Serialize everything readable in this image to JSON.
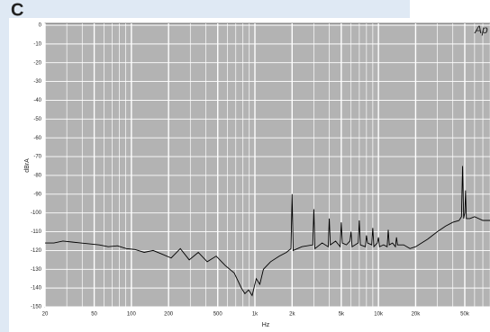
{
  "chart_data": {
    "type": "line",
    "title": "C",
    "annotation": "Ap",
    "y_label": "dBrA",
    "x_label": "Hz",
    "log_x": true,
    "grid": true,
    "color": "#000000",
    "xlim": [
      20,
      80000
    ],
    "ylim": [
      -150,
      0
    ],
    "xticks": [
      20,
      50,
      100,
      200,
      500,
      {
        "value": 1000,
        "label": "1k"
      },
      {
        "value": 2000,
        "label": "2k"
      },
      {
        "value": 5000,
        "label": "5k"
      },
      {
        "value": 10000,
        "label": "10k"
      },
      {
        "value": 20000,
        "label": "20k"
      },
      {
        "value": 50000,
        "label": "50k"
      }
    ],
    "yticks": [
      0,
      -10,
      -20,
      -30,
      -40,
      -50,
      -60,
      -70,
      -80,
      -90,
      -100,
      -110,
      -120,
      -130,
      -140,
      -150
    ],
    "x": [
      20,
      23.6,
      27.9,
      33,
      39,
      46,
      55,
      65,
      77,
      91,
      107,
      127,
      150,
      178,
      210,
      249,
      294,
      348,
      411,
      486,
      575,
      680,
      777,
      830,
      889,
      950,
      1025,
      1096,
      1172,
      1339,
      1577,
      1800,
      1960,
      2000,
      2040,
      2400,
      2940,
      3000,
      3060,
      3500,
      3920,
      4000,
      4080,
      4500,
      4900,
      5000,
      5100,
      5500,
      5880,
      6000,
      6120,
      6860,
      7000,
      7140,
      7840,
      8000,
      8160,
      8820,
      9000,
      9180,
      9800,
      10000,
      10200,
      11000,
      11760,
      12000,
      12240,
      13000,
      13720,
      14000,
      14280,
      16000,
      18000,
      20000,
      25000,
      30000,
      35000,
      40000,
      45000,
      47000,
      48000,
      49000,
      50000,
      50700,
      51500,
      55000,
      60000,
      70000,
      80000
    ],
    "values": [
      -116,
      -116,
      -115,
      -115.5,
      -116,
      -116.5,
      -117,
      -118,
      -117.5,
      -119,
      -119.5,
      -121,
      -120,
      -122,
      -124,
      -119,
      -125,
      -121,
      -126,
      -123,
      -128,
      -132,
      -140,
      -143,
      -141,
      -144,
      -135,
      -138,
      -130,
      -126,
      -123,
      -121,
      -119,
      -90,
      -120,
      -118,
      -117,
      -98,
      -119,
      -116,
      -118,
      -103,
      -117,
      -115,
      -118,
      -105,
      -116,
      -117,
      -115,
      -110,
      -118,
      -116,
      -104,
      -117,
      -118,
      -112,
      -116,
      -117,
      -108,
      -118,
      -116,
      -113,
      -118,
      -117,
      -118,
      -109,
      -117,
      -116,
      -118,
      -113,
      -117,
      -117,
      -119,
      -118,
      -114,
      -110,
      -107,
      -105,
      -104,
      -102,
      -75,
      -103,
      -100,
      -88,
      -103,
      -103,
      -102,
      -104,
      -104
    ]
  }
}
